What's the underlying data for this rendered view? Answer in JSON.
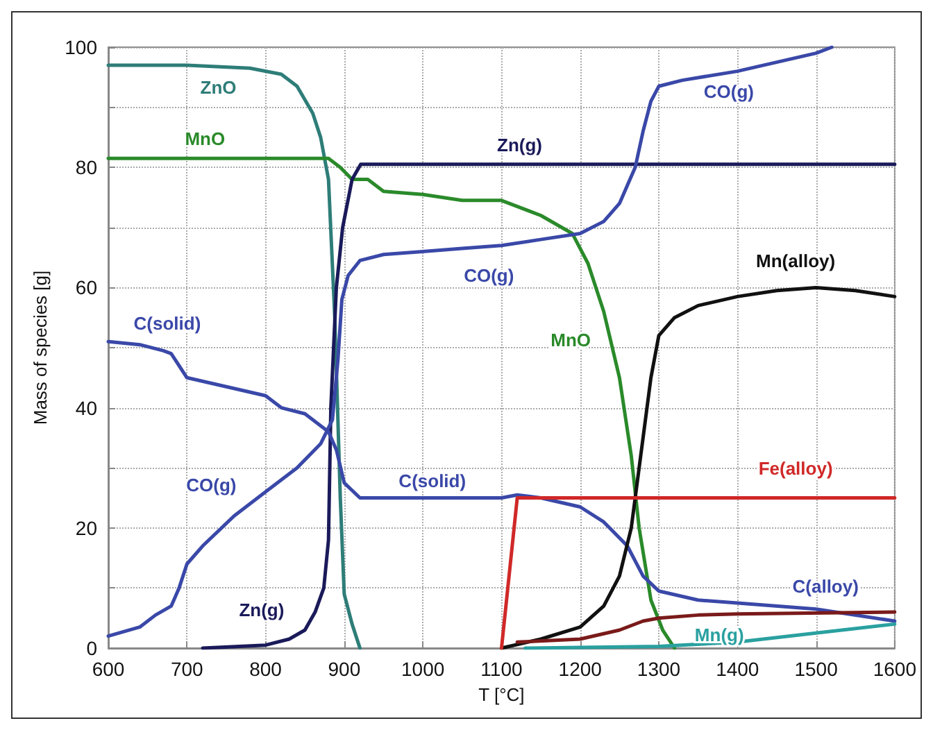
{
  "chart_data": {
    "type": "line",
    "xlabel": "T [°C]",
    "ylabel": "Mass of species [g]",
    "xlim": [
      600,
      1600
    ],
    "xticks": [
      600,
      700,
      800,
      900,
      1000,
      1100,
      1200,
      1300,
      1400,
      1500,
      1600
    ],
    "ylim": [
      0,
      100
    ],
    "yticks": [
      0,
      {
        "value": 10,
        "label": null
      },
      20,
      {
        "value": 30,
        "label": null
      },
      40,
      {
        "value": 50,
        "label": null
      },
      60,
      {
        "value": 70,
        "label": null
      },
      80,
      {
        "value": 90,
        "label": null
      },
      100
    ],
    "grid": true,
    "marker": "none",
    "line_style": "solid",
    "series": [
      {
        "color": "#2e7d78",
        "x": [
          600,
          700,
          780,
          820,
          840,
          860,
          870,
          880,
          888,
          895,
          900,
          910,
          920
        ],
        "values": [
          97,
          97,
          96.5,
          95.5,
          93.5,
          89,
          85,
          78,
          55,
          25,
          9,
          4,
          0
        ]
      },
      {
        "color": "#2a8a2a",
        "x": [
          600,
          700,
          800,
          880,
          895,
          910,
          930,
          950,
          1000,
          1050,
          1100,
          1150,
          1190,
          1210,
          1230,
          1250,
          1265,
          1275,
          1290,
          1305,
          1320
        ],
        "values": [
          81.5,
          81.5,
          81.5,
          81.5,
          80,
          78,
          78,
          76,
          75.5,
          74.5,
          74.5,
          72,
          69,
          64,
          56,
          45,
          32,
          20,
          8,
          3,
          0
        ]
      },
      {
        "color": "#1a1a5a",
        "x": [
          720,
          800,
          830,
          850,
          863,
          874,
          880,
          883,
          890,
          898,
          910,
          921,
          1000,
          1600
        ],
        "values": [
          0,
          0.5,
          1.5,
          3,
          6,
          10,
          18,
          40,
          60,
          70,
          78,
          80.5,
          80.5,
          80.5
        ]
      },
      {
        "color": "#3a48a8",
        "x": [
          600,
          640,
          660,
          680,
          690,
          700,
          720,
          760,
          800,
          840,
          870,
          885,
          892,
          897,
          905,
          920,
          950,
          1000,
          1050,
          1100,
          1150,
          1200,
          1230,
          1250,
          1270,
          1280,
          1290,
          1300,
          1330,
          1400,
          1450,
          1500,
          1520
        ],
        "values": [
          2,
          3.5,
          5.5,
          7,
          10,
          14,
          17,
          22,
          26,
          30,
          34,
          38,
          48,
          58,
          62,
          64.5,
          65.5,
          66,
          66.5,
          67,
          68,
          69,
          71,
          74,
          80,
          86,
          91,
          93.5,
          94.5,
          96,
          97.5,
          99,
          100
        ]
      },
      {
        "color": "#3a48a8",
        "x": [
          600,
          640,
          670,
          680,
          700,
          750,
          800,
          820,
          850,
          880,
          890,
          900,
          920,
          1000,
          1100,
          1120,
          1150,
          1200,
          1230,
          1260,
          1280,
          1300,
          1350,
          1400,
          1500,
          1600
        ],
        "values": [
          51,
          50.5,
          49.5,
          49,
          45,
          43.5,
          42,
          40,
          39,
          36,
          33,
          27.5,
          25,
          25,
          25,
          25.5,
          25,
          23.5,
          21,
          17,
          12,
          9.5,
          8,
          7.5,
          6.5,
          4.5
        ]
      },
      {
        "color": "#111111",
        "x": [
          1100,
          1150,
          1200,
          1230,
          1250,
          1265,
          1280,
          1290,
          1300,
          1320,
          1350,
          1400,
          1450,
          1500,
          1550,
          1600
        ],
        "values": [
          0,
          1.5,
          3.5,
          7,
          12,
          20,
          35,
          45,
          52,
          55,
          57,
          58.5,
          59.5,
          60,
          59.5,
          58.5
        ]
      },
      {
        "color": "#d02828",
        "x": [
          1100,
          1120,
          1600
        ],
        "values": [
          0,
          25,
          25
        ]
      },
      {
        "color": "#7a1a1a",
        "x": [
          1120,
          1200,
          1250,
          1280,
          1300,
          1350,
          1400,
          1600
        ],
        "values": [
          1,
          1.5,
          3,
          4.5,
          5,
          5.5,
          5.7,
          6
        ]
      },
      {
        "color": "#2aa0a0",
        "x": [
          1130,
          1300,
          1400,
          1500,
          1600
        ],
        "values": [
          0,
          0.3,
          1,
          2.5,
          4
        ]
      }
    ],
    "annotations": [
      "ZnO",
      "MnO",
      "Zn(g)",
      "CO(g)",
      "CO(g)",
      "MnO",
      "Mn(alloy)",
      "C(solid)",
      "CO(g)",
      "Zn(g)",
      "C(solid)",
      "Fe(alloy)",
      "C(alloy)",
      "Mn(g)"
    ]
  }
}
